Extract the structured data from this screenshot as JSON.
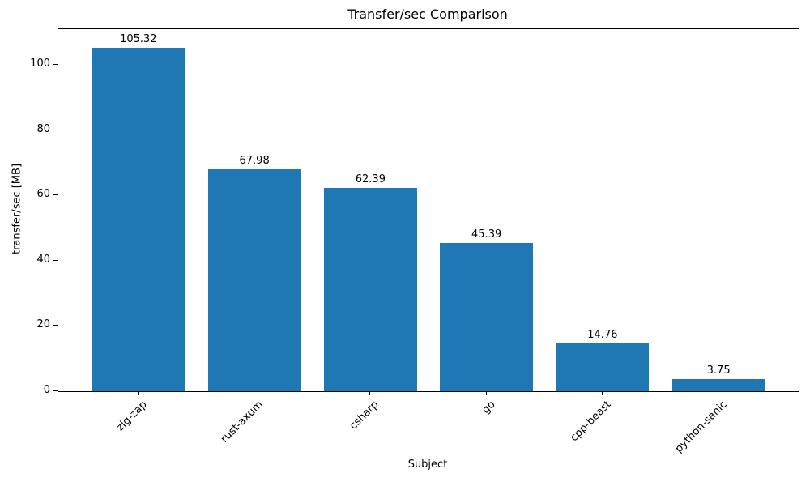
{
  "chart_data": {
    "type": "bar",
    "title": "Transfer/sec Comparison",
    "xlabel": "Subject",
    "ylabel": "transfer/sec [MB]",
    "categories": [
      "zig-zap",
      "rust-axum",
      "csharp",
      "go",
      "cpp-beast",
      "python-sanic"
    ],
    "values": [
      105.32,
      67.98,
      62.39,
      45.39,
      14.76,
      3.75
    ],
    "bar_labels": [
      "105.32",
      "67.98",
      "62.39",
      "45.39",
      "14.76",
      "3.75"
    ],
    "yticks": [
      0,
      20,
      40,
      60,
      80,
      100
    ],
    "ylim": [
      0,
      111
    ],
    "bar_width_fraction": 0.8,
    "x_margin_fraction": 0.05,
    "xtick_rotation_deg": 45,
    "bar_color": "#1f77b4",
    "axis_color": "#000000",
    "text_color": "#000000",
    "background_color": "#ffffff",
    "grid": false,
    "legend": false
  }
}
